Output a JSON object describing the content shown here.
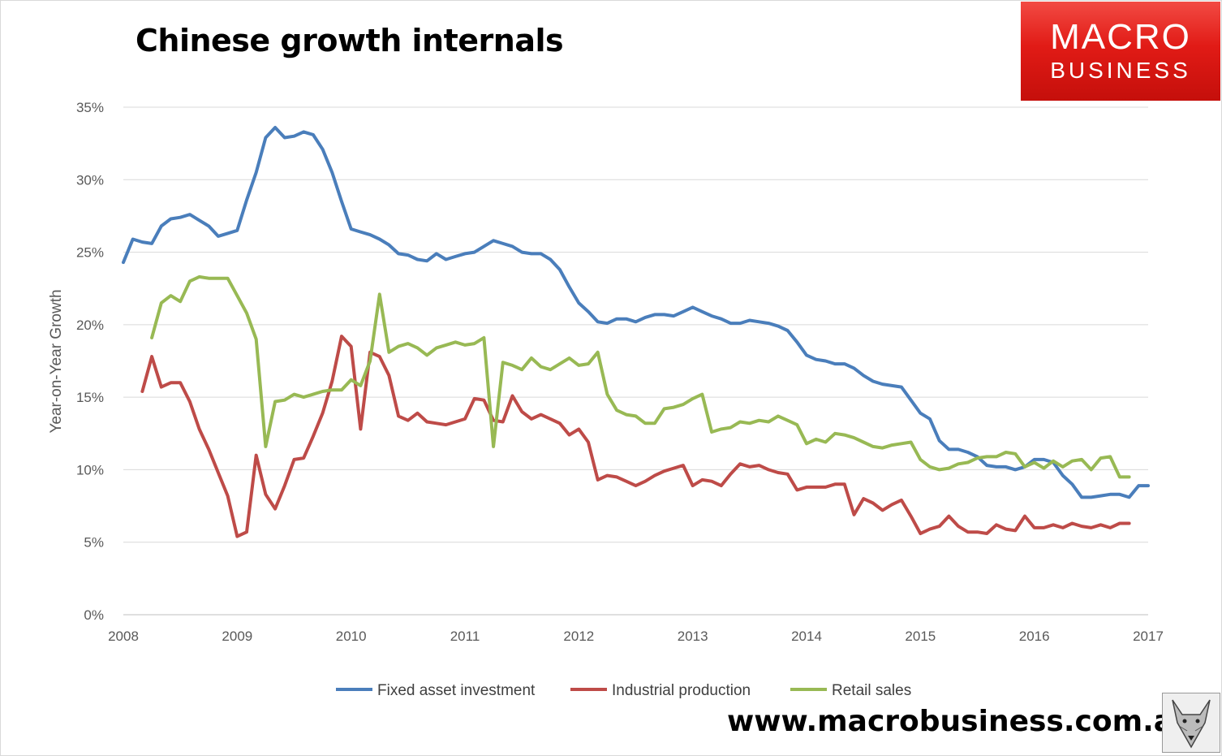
{
  "title": "Chinese growth internals",
  "logo": {
    "line1": "MACRO",
    "line2": "BUSINESS"
  },
  "footer": {
    "url": "www.macrobusiness.com.au"
  },
  "colors": {
    "fixed": "#4a7ebb",
    "industrial": "#be4b48",
    "retail": "#98b954",
    "grid": "#d9d9d9",
    "logo": "#e11b16"
  },
  "chart_data": {
    "type": "line",
    "title": "Chinese growth internals",
    "xlabel": "",
    "ylabel": "Year-on-Year Growth",
    "xlim": [
      2008,
      2017
    ],
    "ylim": [
      0,
      35
    ],
    "y_ticks": [
      0,
      5,
      10,
      15,
      20,
      25,
      30,
      35
    ],
    "y_tick_labels": [
      "0%",
      "5%",
      "10%",
      "15%",
      "20%",
      "25%",
      "30%",
      "35%"
    ],
    "x_ticks": [
      2008,
      2009,
      2010,
      2011,
      2012,
      2013,
      2014,
      2015,
      2016,
      2017
    ],
    "x_tick_labels": [
      "2008",
      "2009",
      "2010",
      "2011",
      "2012",
      "2013",
      "2014",
      "2015",
      "2016",
      "2017"
    ],
    "grid": "horizontal",
    "legend": "bottom",
    "series": [
      {
        "name": "Fixed asset investment",
        "color": "#4a7ebb",
        "x_start": "2008-01",
        "values": [
          24.3,
          25.9,
          25.7,
          25.6,
          26.8,
          27.3,
          27.4,
          27.6,
          27.2,
          26.8,
          26.1,
          26.3,
          26.5,
          28.6,
          30.5,
          32.9,
          33.6,
          32.9,
          33.0,
          33.3,
          33.1,
          32.1,
          30.5,
          28.5,
          26.6,
          26.4,
          26.2,
          25.9,
          25.5,
          24.9,
          24.8,
          24.5,
          24.4,
          24.9,
          24.5,
          24.7,
          24.9,
          25.0,
          25.4,
          25.8,
          25.6,
          25.4,
          25.0,
          24.9,
          24.9,
          24.5,
          23.8,
          22.6,
          21.5,
          20.9,
          20.2,
          20.1,
          20.4,
          20.4,
          20.2,
          20.5,
          20.7,
          20.7,
          20.6,
          20.9,
          21.2,
          20.9,
          20.6,
          20.4,
          20.1,
          20.1,
          20.3,
          20.2,
          20.1,
          19.9,
          19.6,
          18.8,
          17.9,
          17.6,
          17.5,
          17.3,
          17.3,
          17.0,
          16.5,
          16.1,
          15.9,
          15.8,
          15.7,
          14.8,
          13.9,
          13.5,
          12.0,
          11.4,
          11.4,
          11.2,
          10.9,
          10.3,
          10.2,
          10.2,
          10.0,
          10.2,
          10.7,
          10.7,
          10.5,
          9.6,
          9.0,
          8.1,
          8.1,
          8.2,
          8.3,
          8.3,
          8.1,
          8.9,
          8.9
        ]
      },
      {
        "name": "Industrial production",
        "color": "#be4b48",
        "x_start": "2008-03",
        "values": [
          15.4,
          17.8,
          15.7,
          16.0,
          16.0,
          14.7,
          12.8,
          11.4,
          9.8,
          8.2,
          5.4,
          5.7,
          11.0,
          8.3,
          7.3,
          8.9,
          10.7,
          10.8,
          12.3,
          13.9,
          16.1,
          19.2,
          18.5,
          12.8,
          18.1,
          17.8,
          16.5,
          13.7,
          13.4,
          13.9,
          13.3,
          13.2,
          13.1,
          13.3,
          13.5,
          14.9,
          14.8,
          13.4,
          13.3,
          15.1,
          14.0,
          13.5,
          13.8,
          13.5,
          13.2,
          12.4,
          12.8,
          11.9,
          9.3,
          9.6,
          9.5,
          9.2,
          8.9,
          9.2,
          9.6,
          9.9,
          10.1,
          10.3,
          8.9,
          9.3,
          9.2,
          8.9,
          9.7,
          10.4,
          10.2,
          10.3,
          10.0,
          9.8,
          9.7,
          8.6,
          8.8,
          8.8,
          8.8,
          9.0,
          9.0,
          6.9,
          8.0,
          7.7,
          7.2,
          7.6,
          7.9,
          6.8,
          5.6,
          5.9,
          6.1,
          6.8,
          6.1,
          5.7,
          5.7,
          5.6,
          6.2,
          5.9,
          5.8,
          6.8,
          6.0,
          6.0,
          6.2,
          6.0,
          6.3,
          6.1,
          6.0,
          6.2,
          6.0,
          6.3,
          6.3
        ]
      },
      {
        "name": "Retail sales",
        "color": "#98b954",
        "x_start": "2008-04",
        "values": [
          19.1,
          21.5,
          22.0,
          21.6,
          23.0,
          23.3,
          23.2,
          23.2,
          23.2,
          22.0,
          20.8,
          19.0,
          11.6,
          14.7,
          14.8,
          15.2,
          15.0,
          15.2,
          15.4,
          15.5,
          15.5,
          16.2,
          15.8,
          17.5,
          22.1,
          18.1,
          18.5,
          18.7,
          18.4,
          17.9,
          18.4,
          18.6,
          18.8,
          18.6,
          18.7,
          19.1,
          11.6,
          17.4,
          17.2,
          16.9,
          17.7,
          17.1,
          16.9,
          17.3,
          17.7,
          17.2,
          17.3,
          18.1,
          15.2,
          14.1,
          13.8,
          13.7,
          13.2,
          13.2,
          14.2,
          14.3,
          14.5,
          14.9,
          15.2,
          12.6,
          12.8,
          12.9,
          13.3,
          13.2,
          13.4,
          13.3,
          13.7,
          13.4,
          13.1,
          11.8,
          12.1,
          11.9,
          12.5,
          12.4,
          12.2,
          11.9,
          11.6,
          11.5,
          11.7,
          11.8,
          11.9,
          10.7,
          10.2,
          10.0,
          10.1,
          10.4,
          10.5,
          10.8,
          10.9,
          10.9,
          11.2,
          11.1,
          10.2,
          10.5,
          10.1,
          10.6,
          10.2,
          10.6,
          10.7,
          10.0,
          10.8,
          10.9,
          9.5,
          9.5
        ]
      }
    ]
  }
}
